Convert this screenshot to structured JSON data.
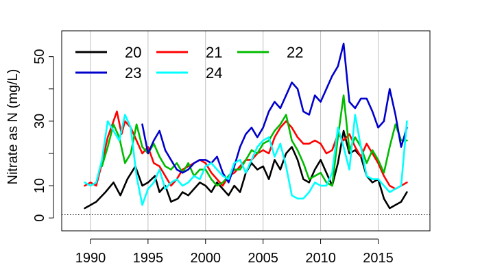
{
  "chart_data": {
    "type": "line",
    "title": "",
    "xlabel": "",
    "ylabel": "Nitrate as N (mg/L)",
    "xlim": [
      1987.5,
      2019.5
    ],
    "ylim": [
      -4,
      58
    ],
    "x_ticks": [
      1990,
      1995,
      2000,
      2005,
      2010,
      2015
    ],
    "y_ticks": [
      0,
      10,
      30,
      50
    ],
    "y_minor_ticks": [
      20,
      40
    ],
    "grid": "vertical lines at x ticks",
    "reference_line": {
      "y": 1,
      "style": "dotted"
    },
    "legend_position": "top-left",
    "series": [
      {
        "name": "20",
        "color": "#000000",
        "x": [
          1989.5,
          1990.5,
          1991.3,
          1992,
          1992.6,
          1993.2,
          1993.9,
          1994.5,
          1995,
          1995.6,
          1996,
          1996.5,
          1997,
          1997.6,
          1998,
          1998.5,
          1999,
          1999.5,
          2000,
          2000.5,
          2001,
          2001.5,
          2002,
          2002.5,
          2003,
          2003.5,
          2004,
          2004.5,
          2005,
          2005.5,
          2006,
          2006.5,
          2007,
          2007.5,
          2008,
          2008.5,
          2009,
          2009.5,
          2010,
          2010.5,
          2011,
          2011.5,
          2012,
          2012.5,
          2013,
          2013.5,
          2014,
          2014.5,
          2015,
          2015.5,
          2016,
          2016.5,
          2017,
          2017.5
        ],
        "values": [
          3,
          5,
          8,
          11,
          7,
          12,
          16,
          10,
          11,
          13,
          8,
          10,
          5,
          6,
          8,
          7,
          9,
          11,
          10,
          8,
          11,
          9,
          7,
          10,
          8,
          14,
          17,
          15,
          16,
          12,
          18,
          15,
          20,
          22,
          18,
          12,
          11,
          15,
          18,
          14,
          10,
          17,
          27,
          20,
          21,
          19,
          13,
          11,
          12,
          6,
          3,
          4,
          5,
          8
        ]
      },
      {
        "name": "21",
        "color": "#ff0000",
        "x": [
          1989.5,
          1990,
          1990.5,
          1991,
          1991.5,
          1992,
          1992.3,
          1992.7,
          1993,
          1993.5,
          1994,
          1994.5,
          1995,
          1995.5,
          1996,
          1996.5,
          1997,
          1997.5,
          1998,
          1998.5,
          1999,
          1999.5,
          2000,
          2000.5,
          2001,
          2001.5,
          2002,
          2002.5,
          2003,
          2003.5,
          2004,
          2004.5,
          2005,
          2005.5,
          2006,
          2006.5,
          2007,
          2007.5,
          2008,
          2008.5,
          2009,
          2009.5,
          2010,
          2010.5,
          2011,
          2011.5,
          2012,
          2012.5,
          2013,
          2013.5,
          2014,
          2014.5,
          2015,
          2015.5,
          2016,
          2016.5,
          2017,
          2017.5
        ],
        "values": [
          10,
          11,
          10,
          17,
          25,
          30,
          33,
          26,
          30,
          28,
          24,
          20,
          22,
          17,
          16,
          13,
          10,
          12,
          15,
          16,
          17,
          18,
          17,
          14,
          12,
          10,
          13,
          14,
          16,
          18,
          18,
          20,
          21,
          20,
          25,
          28,
          30,
          28,
          25,
          23,
          23,
          24,
          23,
          20,
          21,
          26,
          24,
          26,
          22,
          19,
          23,
          20,
          17,
          13,
          10,
          9,
          10,
          11
        ]
      },
      {
        "name": "22",
        "color": "#00bb00",
        "x": [
          1991,
          1991.5,
          1992,
          1992.5,
          1993,
          1993.5,
          1994,
          1994.5,
          1995,
          1995.5,
          1996,
          1996.5,
          1997,
          1997.5,
          1998,
          1998.5,
          1999,
          1999.5,
          2000,
          2000.5,
          2001,
          2001.5,
          2002,
          2002.5,
          2003,
          2003.5,
          2004,
          2004.5,
          2005,
          2005.5,
          2006,
          2006.5,
          2007,
          2007.5,
          2008,
          2008.5,
          2009,
          2009.5,
          2010,
          2010.5,
          2011,
          2011.5,
          2012,
          2012.5,
          2013,
          2013.5,
          2014,
          2014.5,
          2015,
          2015.5,
          2016,
          2016.5,
          2017,
          2017.5
        ],
        "values": [
          16,
          22,
          29,
          25,
          17,
          20,
          29,
          22,
          20,
          23,
          19,
          16,
          15,
          17,
          14,
          17,
          13,
          15,
          15,
          12,
          10,
          11,
          13,
          15,
          15,
          18,
          21,
          20,
          23,
          24,
          27,
          29,
          32,
          24,
          21,
          17,
          12,
          13,
          14,
          11,
          10,
          25,
          38,
          21,
          25,
          22,
          17,
          21,
          18,
          14,
          22,
          29,
          24,
          24
        ]
      },
      {
        "name": "23",
        "color": "#0000cc",
        "x": [
          1994.5,
          1995,
          1995.5,
          1996,
          1996.5,
          1997,
          1997.5,
          1998,
          1998.5,
          1999,
          1999.5,
          2000,
          2000.5,
          2001,
          2001.5,
          2002,
          2002.5,
          2003,
          2003.5,
          2004,
          2004.5,
          2005,
          2005.5,
          2006,
          2006.5,
          2007,
          2007.5,
          2008,
          2008.5,
          2009,
          2009.5,
          2010,
          2010.5,
          2011,
          2011.5,
          2012,
          2012.5,
          2013,
          2013.5,
          2014,
          2014.5,
          2015,
          2015.5,
          2016,
          2016.5,
          2017,
          2017.5
        ],
        "values": [
          29,
          20,
          24,
          27,
          21,
          18,
          15,
          14,
          15,
          17,
          18,
          18,
          17,
          19,
          14,
          11,
          16,
          22,
          26,
          28,
          25,
          28,
          33,
          36,
          34,
          38,
          42,
          40,
          33,
          32,
          38,
          36,
          40,
          44,
          47,
          54,
          36,
          34,
          37,
          37,
          33,
          28,
          30,
          40,
          32,
          22,
          28
        ]
      },
      {
        "name": "24",
        "color": "#00ffff",
        "x": [
          1989.5,
          1990,
          1990.5,
          1991,
          1991.5,
          1992,
          1992.5,
          1993,
          1993.5,
          1994,
          1994.5,
          1995,
          1995.5,
          1996,
          1996.5,
          1997,
          1997.5,
          1998,
          1998.5,
          1999,
          1999.5,
          2000,
          2000.5,
          2001,
          2001.5,
          2002,
          2002.5,
          2003,
          2003.5,
          2004,
          2004.5,
          2005,
          2005.5,
          2006,
          2006.5,
          2007,
          2007.5,
          2008,
          2008.5,
          2009,
          2009.5,
          2010,
          2010.5,
          2011,
          2011.5,
          2012,
          2012.5,
          2013,
          2013.5,
          2014,
          2014.5,
          2015,
          2015.5,
          2016,
          2016.5,
          2017,
          2017.5
        ],
        "values": [
          11,
          10,
          11,
          18,
          30,
          27,
          24,
          32,
          28,
          13,
          4,
          9,
          11,
          15,
          9,
          11,
          12,
          10,
          11,
          13,
          12,
          16,
          17,
          15,
          13,
          12,
          17,
          18,
          14,
          18,
          22,
          24,
          25,
          19,
          23,
          16,
          7,
          6,
          6,
          8,
          11,
          10,
          10,
          14,
          28,
          22,
          15,
          32,
          22,
          13,
          12,
          12,
          10,
          8,
          9,
          10,
          30
        ]
      }
    ]
  }
}
